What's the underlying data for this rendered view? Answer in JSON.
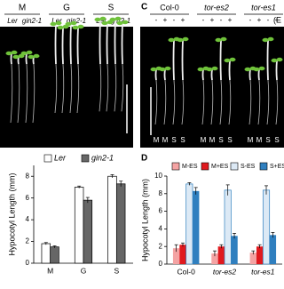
{
  "photo_a": {
    "groups": [
      {
        "label": "M",
        "genotypes": [
          "Ler",
          "gin2-1"
        ]
      },
      {
        "label": "G",
        "genotypes": [
          "Ler",
          "gin2-1"
        ]
      },
      {
        "label": "S",
        "genotypes": [
          "Ler",
          "gin2-1"
        ]
      }
    ]
  },
  "photo_c": {
    "panel_label": "C",
    "treatment_label": "(E",
    "groups": [
      {
        "label": "Col-0",
        "signs": [
          "-",
          "+",
          "-",
          "+"
        ],
        "lanes": [
          "M",
          "M",
          "S",
          "S"
        ]
      },
      {
        "label": "tor-es2",
        "signs": [
          "-",
          "+",
          "-",
          "+"
        ],
        "lanes": [
          "M",
          "M",
          "S",
          "S"
        ]
      },
      {
        "label": "tor-es1",
        "signs": [
          "-",
          "+",
          "-",
          "+"
        ],
        "lanes": [
          "M",
          "M",
          "S",
          "S"
        ]
      }
    ]
  },
  "chart_data": [
    {
      "type": "bar",
      "y_label": "Hypocotyl Length (mm)",
      "categories": [
        "M",
        "G",
        "S"
      ],
      "series": [
        {
          "name": "Ler",
          "color": "#ffffff",
          "values": [
            1.8,
            7.0,
            8.0
          ],
          "errors": [
            0.1,
            0.1,
            0.15
          ]
        },
        {
          "name": "gin2-1",
          "color": "#666666",
          "values": [
            1.5,
            5.8,
            7.3
          ],
          "errors": [
            0.1,
            0.25,
            0.25
          ]
        }
      ],
      "annotation": "**",
      "ylim": [
        0,
        9
      ],
      "yticks": [
        0,
        2,
        4,
        6,
        8
      ]
    },
    {
      "type": "bar",
      "panel_label": "D",
      "y_label": "Hypocotyl Length (mm)",
      "categories": [
        "Col-0",
        "tor-es2",
        "tor-es1"
      ],
      "series": [
        {
          "name": "M-ES",
          "color": "#f4a3a3",
          "values": [
            1.8,
            1.2,
            1.3
          ],
          "errors": [
            0.4,
            0.3,
            0.2
          ]
        },
        {
          "name": "M+ES",
          "color": "#e0191e",
          "values": [
            2.2,
            2.0,
            2.0
          ],
          "errors": [
            0.2,
            0.2,
            0.2
          ]
        },
        {
          "name": "S-ES",
          "color": "#dce9f5",
          "values": [
            9.1,
            8.4,
            8.4
          ],
          "errors": [
            0.15,
            0.6,
            0.5
          ]
        },
        {
          "name": "S+ES",
          "color": "#2f7fbf",
          "values": [
            8.3,
            3.2,
            3.3
          ],
          "errors": [
            0.4,
            0.3,
            0.3
          ]
        }
      ],
      "ylim": [
        0,
        10
      ],
      "yticks": [
        0,
        2,
        4,
        6,
        8,
        10
      ]
    }
  ]
}
